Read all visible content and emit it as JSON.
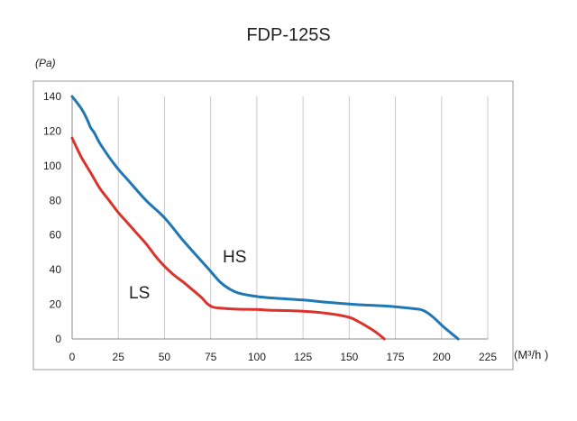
{
  "chart_data": {
    "type": "line",
    "title": "FDP-125S",
    "ylabel": "(Pa)",
    "xlabel": "(M³/h )",
    "xlim": [
      0,
      225
    ],
    "ylim": [
      0,
      140
    ],
    "x_ticks": [
      "0",
      "25",
      "50",
      "75",
      "100",
      "125",
      "150",
      "175",
      "200",
      "225"
    ],
    "y_ticks": [
      "0",
      "20",
      "40",
      "60",
      "80",
      "100",
      "120",
      "140"
    ],
    "grid": "vertical",
    "series": [
      {
        "name": "HS",
        "color": "#1f77b4",
        "points": [
          [
            0,
            140
          ],
          [
            5,
            133
          ],
          [
            8,
            127
          ],
          [
            10,
            122
          ],
          [
            12,
            119
          ],
          [
            15,
            113
          ],
          [
            20,
            105
          ],
          [
            25,
            98
          ],
          [
            30,
            92
          ],
          [
            40,
            80
          ],
          [
            50,
            70
          ],
          [
            60,
            57
          ],
          [
            70,
            45
          ],
          [
            75,
            39
          ],
          [
            80,
            33
          ],
          [
            85,
            29
          ],
          [
            90,
            26.5
          ],
          [
            100,
            24.5
          ],
          [
            110,
            23.5
          ],
          [
            125,
            22.5
          ],
          [
            140,
            21
          ],
          [
            155,
            19.8
          ],
          [
            170,
            19
          ],
          [
            185,
            17.5
          ],
          [
            190,
            16.5
          ],
          [
            195,
            13
          ],
          [
            200,
            8
          ],
          [
            205,
            3.5
          ],
          [
            209,
            0
          ]
        ]
      },
      {
        "name": "LS",
        "color": "#d9332b",
        "points": [
          [
            0,
            116
          ],
          [
            5,
            105
          ],
          [
            10,
            96
          ],
          [
            15,
            87
          ],
          [
            20,
            80
          ],
          [
            25,
            73
          ],
          [
            30,
            67
          ],
          [
            35,
            61
          ],
          [
            40,
            55
          ],
          [
            45,
            48
          ],
          [
            50,
            42
          ],
          [
            55,
            37
          ],
          [
            60,
            33
          ],
          [
            65,
            28.5
          ],
          [
            70,
            24
          ],
          [
            73,
            20.5
          ],
          [
            76,
            18.5
          ],
          [
            80,
            17.8
          ],
          [
            90,
            17.2
          ],
          [
            100,
            17
          ],
          [
            110,
            16.5
          ],
          [
            125,
            16
          ],
          [
            140,
            14.5
          ],
          [
            150,
            12.5
          ],
          [
            155,
            10
          ],
          [
            160,
            7
          ],
          [
            165,
            3.5
          ],
          [
            169,
            0
          ]
        ]
      }
    ]
  }
}
